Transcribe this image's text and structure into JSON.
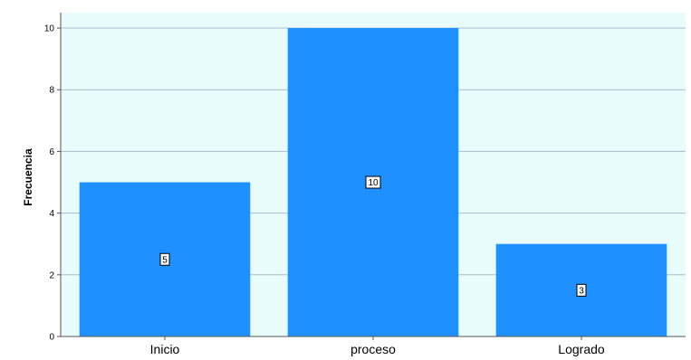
{
  "colors": {
    "plot_background": "#e8fcfc",
    "bar_fill": "#1e90ff",
    "grid": "#a9bccc",
    "axis": "#555555"
  },
  "chart_data": {
    "type": "bar",
    "categories": [
      "Inicio",
      "proceso",
      "Logrado"
    ],
    "values": [
      5,
      10,
      3
    ],
    "data_labels": [
      "5",
      "10",
      "3"
    ],
    "title": "",
    "xlabel": "",
    "ylabel": "Frecuencia",
    "ylim": [
      0,
      10.5
    ],
    "yticks": [
      0,
      2,
      4,
      6,
      8,
      10
    ],
    "ytick_labels": [
      "0",
      "2",
      "4",
      "6",
      "8",
      "10"
    ],
    "grid": true,
    "legend": "none"
  }
}
